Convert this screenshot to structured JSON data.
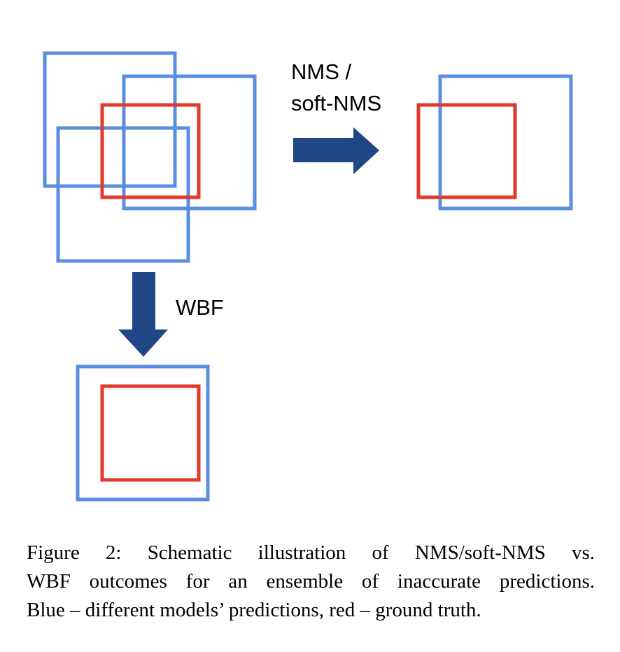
{
  "diagram": {
    "labels": {
      "nms_line1": "NMS /",
      "nms_line2": "soft-NMS",
      "wbf": "WBF"
    },
    "colors": {
      "prediction_box": "#5b8ee0",
      "ground_truth_box": "#e03a2c",
      "arrow": "#1f4786"
    }
  },
  "caption": {
    "line1": "Figure 2:  Schematic illustration of NMS/soft-NMS vs.",
    "line2": "WBF outcomes for an ensemble of inaccurate predictions.",
    "line3": "Blue – different models’ predictions, red – ground truth."
  }
}
